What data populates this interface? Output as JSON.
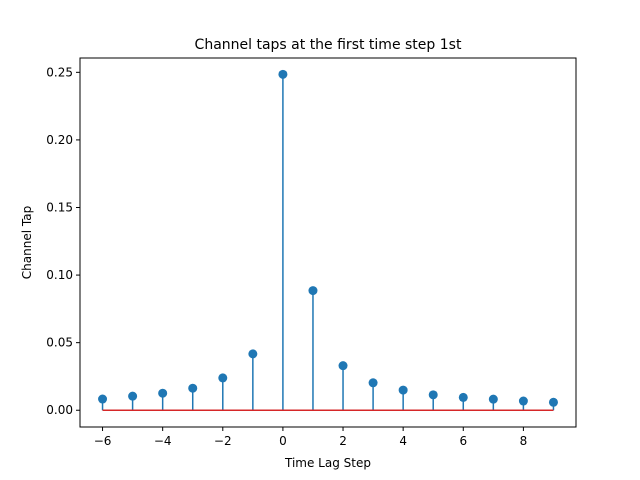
{
  "chart_data": {
    "type": "stem",
    "title": "Channel taps at the first time step 1st",
    "xlabel": "Time Lag Step",
    "ylabel": "Channel Tap",
    "xlim": [
      -6.75,
      9.75
    ],
    "ylim": [
      -0.0124,
      0.2606
    ],
    "xticks": [
      -6,
      -4,
      -2,
      0,
      2,
      4,
      6,
      8
    ],
    "yticks": [
      0.0,
      0.05,
      0.1,
      0.15,
      0.2,
      0.25
    ],
    "x": [
      -6,
      -5,
      -4,
      -3,
      -2,
      -1,
      0,
      1,
      2,
      3,
      4,
      5,
      6,
      7,
      8,
      9
    ],
    "values": [
      0.0083,
      0.0104,
      0.0126,
      0.0163,
      0.0239,
      0.0417,
      0.2485,
      0.0885,
      0.033,
      0.0203,
      0.0149,
      0.0114,
      0.0095,
      0.0082,
      0.0068,
      0.0059
    ],
    "stem_color": "#1f77b4",
    "baseline_color": "#d62728",
    "baseline_value": 0,
    "grid": false,
    "legend": false
  }
}
